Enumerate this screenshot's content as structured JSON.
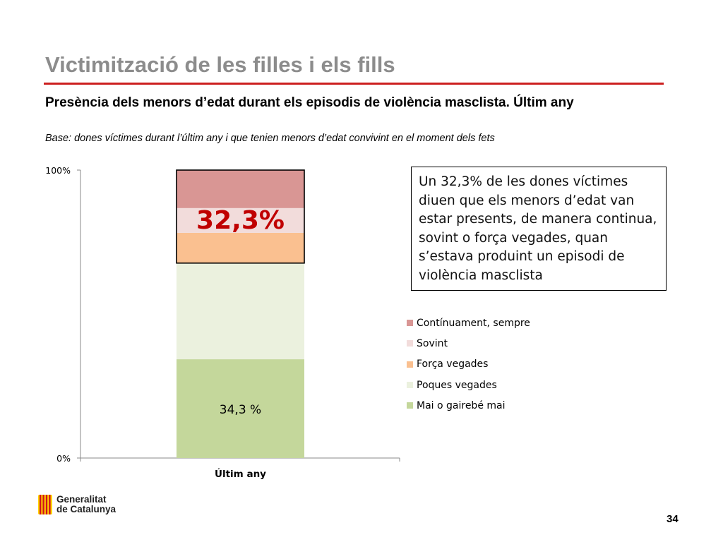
{
  "slide": {
    "title": "Victimització de les filles i els fills",
    "subtitle": "Presència dels menors d’edat durant els episodis de violència masclista. Últim any",
    "base_note": "Base: dones víctimes durant l’últim any i que tenien menors d’edat convivint en el moment dels fets",
    "callout": "Un 32,3% de les dones víctimes diuen que els menors d’edat van estar presents, de manera continua, sovint o força vegades, quan s’estava produint un episodi de violència masclista",
    "logo_line1": "Generalitat",
    "logo_line2": "de Catalunya",
    "page_number": "34",
    "accent_color": "#cc1f1f"
  },
  "chart_data": {
    "type": "bar",
    "stacked": true,
    "categories": [
      "Últim any"
    ],
    "series": [
      {
        "name": "Mai o gairebé mai",
        "values": [
          34.3
        ],
        "color": "#c4d79b"
      },
      {
        "name": "Poques vegades",
        "values": [
          33.4
        ],
        "color": "#ebf1de"
      },
      {
        "name": "Força vegades",
        "values": [
          10.5
        ],
        "color": "#fac090"
      },
      {
        "name": "Sovint",
        "values": [
          8.6
        ],
        "color": "#f2dcdb"
      },
      {
        "name": "Contínuament, sempre",
        "values": [
          13.2
        ],
        "color": "#d99694"
      }
    ],
    "data_labels": [
      {
        "series": "Mai o gairebé mai",
        "text": "34,3 %"
      }
    ],
    "highlight": {
      "text": "32,3%",
      "series": [
        "Força vegades",
        "Sovint",
        "Contínuament, sempre"
      ],
      "color": "#c00000"
    },
    "yticks": [
      "0%",
      "100%"
    ],
    "ylim": [
      0,
      100
    ],
    "xlabel": "",
    "ylabel": "",
    "legend_position": "right"
  }
}
